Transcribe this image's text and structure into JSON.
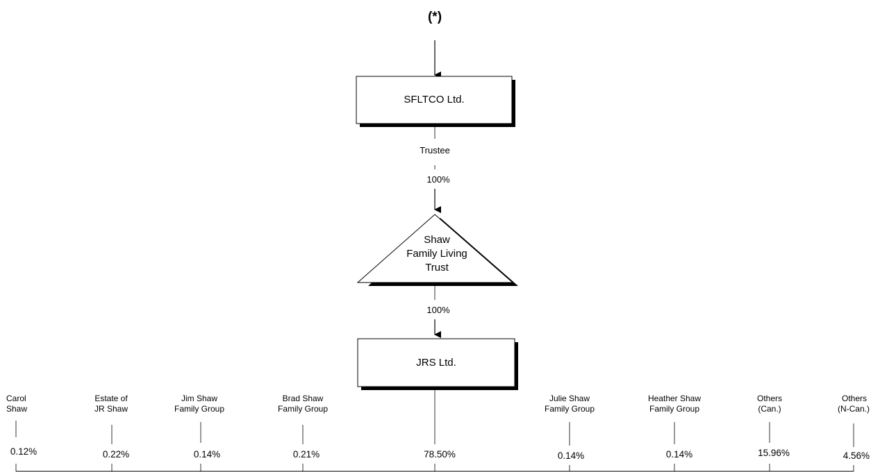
{
  "top_marker": "(*)",
  "nodes": {
    "sfltco": {
      "label": "SFLTCO Ltd."
    },
    "trust": {
      "lines": [
        "Shaw",
        "Family Living",
        "Trust"
      ]
    },
    "jrs": {
      "label": "JRS Ltd."
    }
  },
  "edges": {
    "sfltco_to_trust": {
      "role": "Trustee",
      "percent": "100%"
    },
    "trust_to_jrs": {
      "percent": "100%"
    }
  },
  "shareholders": [
    {
      "lines": [
        "Carol",
        "Shaw"
      ],
      "percent": "0.12%"
    },
    {
      "lines": [
        "Estate of",
        "JR Shaw"
      ],
      "percent": "0.22%"
    },
    {
      "lines": [
        "Jim Shaw",
        "Family Group"
      ],
      "percent": "0.14%"
    },
    {
      "lines": [
        "Brad Shaw",
        "Family Group"
      ],
      "percent": "0.21%"
    },
    {
      "lines": [],
      "percent": "78.50%"
    },
    {
      "lines": [
        "Julie Shaw",
        "Family Group"
      ],
      "percent": "0.14%"
    },
    {
      "lines": [
        "Heather Shaw",
        "Family Group"
      ],
      "percent": "0.14%"
    },
    {
      "lines": [
        "Others",
        "(Can.)"
      ],
      "percent": "15.96%"
    },
    {
      "lines": [
        "Others",
        "(N-Can.)"
      ],
      "percent": "4.56%"
    }
  ]
}
